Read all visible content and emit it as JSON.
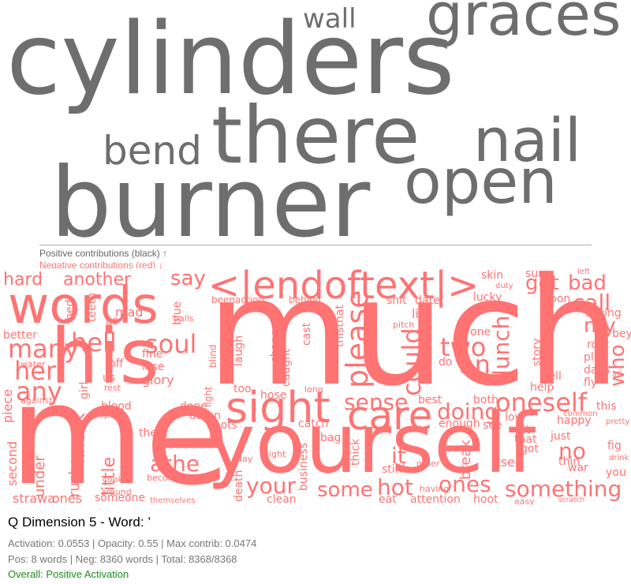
{
  "colors": {
    "positive": "#6e6e6e",
    "negative": "#ff7373",
    "overall_positive": "#1f8a1f"
  },
  "positive_words": [
    "cylinders",
    "graces",
    "wall",
    "there",
    "nail",
    "bend",
    "burner",
    "open"
  ],
  "negative_words": [
    "much",
    "me",
    "his",
    "words",
    "yourself",
    "sight",
    "care",
    "<|endoftext|>",
    "hell",
    "soul",
    "many",
    "her",
    "any",
    "please",
    "could",
    "sense",
    "oneself",
    "two",
    "an",
    "doing",
    "lunch",
    "my",
    "who",
    "call",
    "get",
    "bad",
    "your",
    "some",
    "ones",
    "something",
    "hot",
    "athe",
    "it",
    "no",
    "little",
    "knock",
    "rush",
    "under",
    "second",
    "piece",
    "strawa",
    "ones",
    "someone",
    "clean",
    "attention",
    "hoot",
    "eat",
    "stink",
    "break",
    "fig",
    "happy",
    "itself",
    "sure",
    "saying",
    "roll",
    "play",
    "days",
    "fly",
    "war",
    "thin",
    "you",
    "this",
    "say",
    "hard",
    "another",
    "teeth",
    "mad",
    "as",
    "better",
    "bed",
    "blue",
    "balls",
    "been",
    "action",
    "behind",
    "lip",
    "shit",
    "date",
    "lucky",
    "soon",
    "skin",
    "tell",
    "help",
    "story",
    "nothing",
    "true",
    "a",
    "one",
    "laugh",
    "change",
    "caught",
    "cast",
    "thisthat",
    "minute",
    "pitch",
    "do",
    "enough",
    "bag",
    "thick",
    "catch",
    "hoots",
    "them",
    "glory",
    "lose",
    "fine",
    "off",
    "us",
    "girl",
    "blood",
    "done",
    "damn",
    "too",
    "hose",
    "long",
    "best",
    "both",
    "low",
    "see",
    "bit",
    "got",
    "that",
    "just",
    "fight",
    "light",
    "blind",
    "business",
    "order",
    "night",
    "day",
    "death",
    "the",
    "become",
    "themselves",
    "around",
    "cook",
    "settle",
    "against",
    "water",
    "rest",
    "speed",
    "having",
    "lick",
    "somebody",
    "easy",
    "scratch",
    "common",
    "pretty",
    "drink",
    "ride",
    "beyond",
    "all",
    "few",
    "duty",
    "left",
    "rain",
    "lucky"
  ],
  "legend": {
    "positive": "Positive contributions (black) ↑",
    "negative": "Negative contributions (red) ↓"
  },
  "info": {
    "title": "Q Dimension 5 - Word: ’",
    "activation_line": "Activation: 0.0553 | Opacity: 0.55 | Max contrib: 0.0474",
    "counts_line": "Pos: 8 words | Neg: 8360 words | Total: 8368/8368",
    "overall": "Overall: Positive Activation"
  }
}
